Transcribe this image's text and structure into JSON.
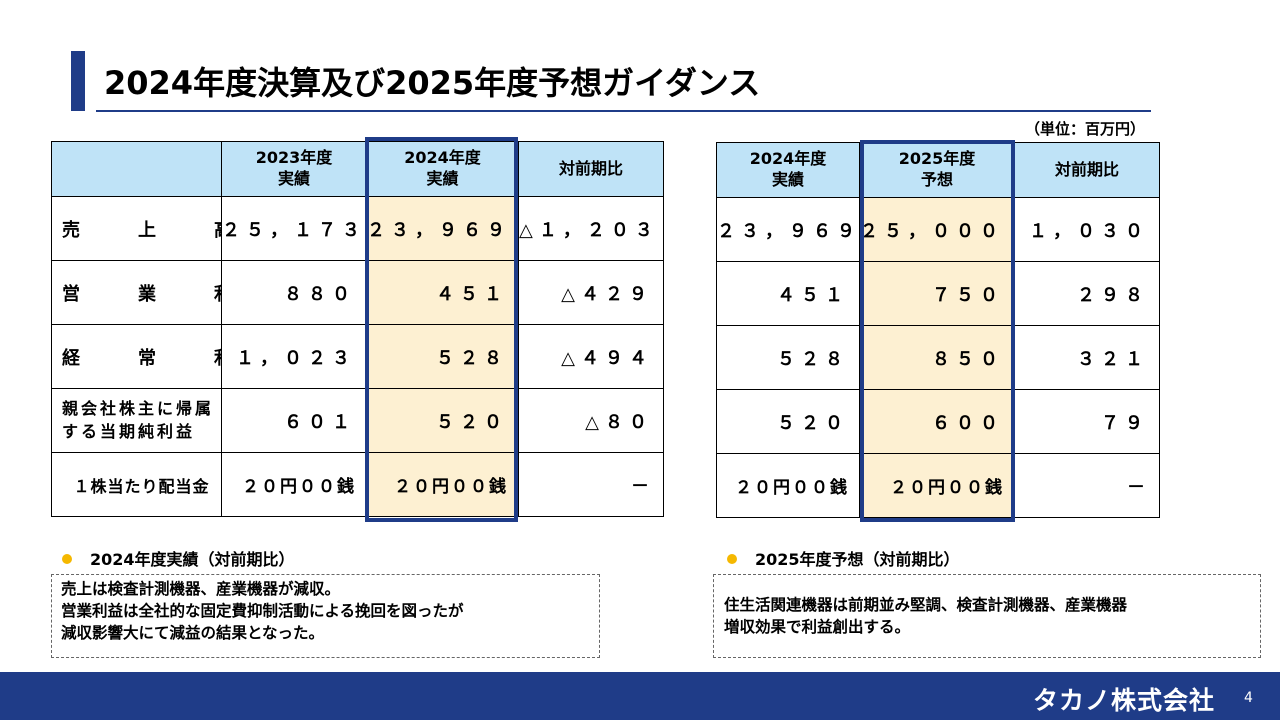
{
  "title": "2024年度決算及び2025年度予想ガイダンス",
  "unit": "（単位：百万円）",
  "table_2024": {
    "headers": [
      "",
      "2023年度\n実績",
      "2024年度\n実績",
      "対前期比"
    ],
    "rows": [
      {
        "label": "売　上　高",
        "prev": "２５，１７３",
        "cur": "２３，９６９",
        "diff": "△１，２０３"
      },
      {
        "label": "営　業　利　益",
        "prev": "８８０",
        "cur": "４５１",
        "diff": "△４２９"
      },
      {
        "label": "経　常　利　益",
        "prev": "１，０２３",
        "cur": "５２８",
        "diff": "△４９４"
      },
      {
        "label": "親会社株主に帰属\nする当期純利益",
        "prev": "６０１",
        "cur": "５２０",
        "diff": "△８０"
      },
      {
        "label": "１株当たり配当金",
        "prev": "２０円００銭",
        "cur": "２０円００銭",
        "diff": "－"
      }
    ]
  },
  "table_2025": {
    "headers": [
      "2024年度\n実績",
      "2025年度\n予想",
      "対前期比"
    ],
    "rows": [
      {
        "actual": "２３，９６９",
        "forecast": "２５，０００",
        "diff": "１，０３０"
      },
      {
        "actual": "４５１",
        "forecast": "７５０",
        "diff": "２９８"
      },
      {
        "actual": "５２８",
        "forecast": "８５０",
        "diff": "３２１"
      },
      {
        "actual": "５２０",
        "forecast": "６００",
        "diff": "７９"
      },
      {
        "actual": "２０円００銭",
        "forecast": "２０円００銭",
        "diff": "－"
      }
    ]
  },
  "summary_2024": {
    "heading": "2024年度実績（対前期比）",
    "lines": [
      "売上は検査計測機器、産業機器が減収。",
      "営業利益は全社的な固定費抑制活動による挽回を図ったが",
      "減収影響大にて減益の結果となった。"
    ]
  },
  "summary_2025": {
    "heading": "2025年度予想（対前期比）",
    "lines": [
      "住生活関連機器は前期並み堅調、検査計測機器、産業機器",
      "増収効果で利益創出する。"
    ]
  },
  "footer": {
    "logo": "タカノ株式会社",
    "page": "4"
  },
  "colors": {
    "navy": "#1f3c88",
    "header_blue": "#bfe3f7",
    "highlight": "#fdf0d2",
    "bullet": "#f5b800"
  }
}
